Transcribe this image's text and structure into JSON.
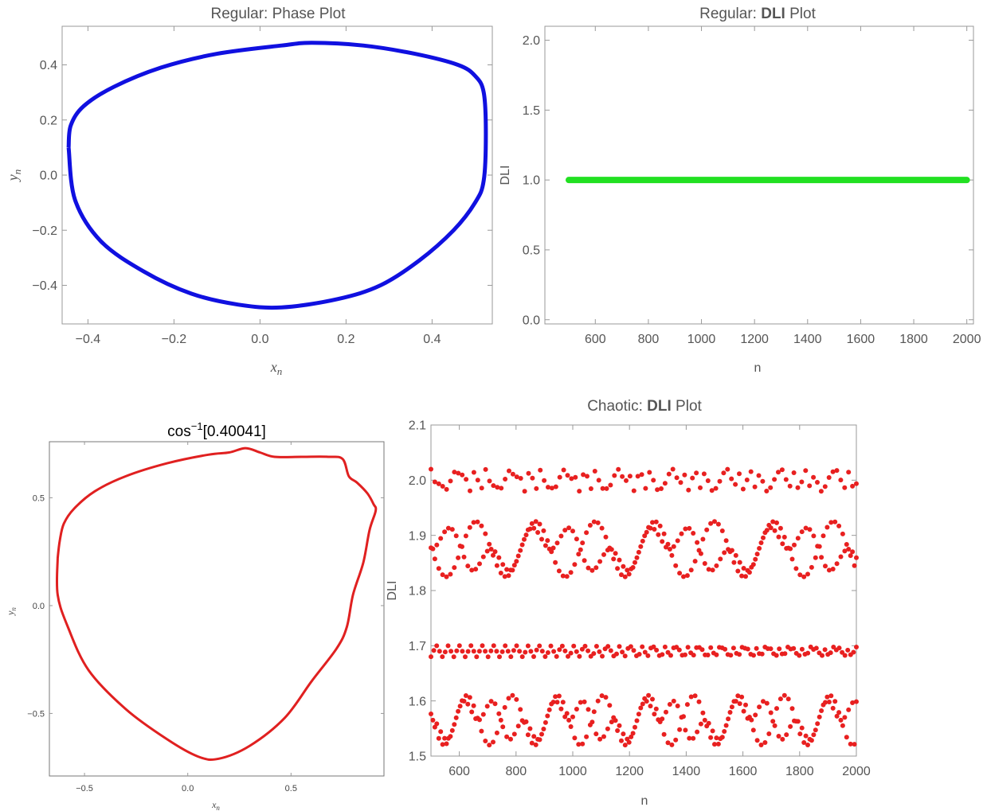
{
  "chart_data": [
    {
      "type": "scatter",
      "title": "Regular: Phase Plot",
      "xlabel": "x_n",
      "ylabel": "y_n",
      "xlim": [
        -0.46,
        0.54
      ],
      "ylim": [
        -0.54,
        0.54
      ],
      "xticks": [
        "−0.4",
        "−0.2",
        "0.0",
        "0.2",
        "0.4"
      ],
      "xtick_values": [
        -0.4,
        -0.2,
        0.0,
        0.2,
        0.4
      ],
      "yticks": [
        "−0.4",
        "−0.2",
        "0.0",
        "0.2",
        "0.4"
      ],
      "ytick_values": [
        -0.4,
        -0.2,
        0.0,
        0.2,
        0.4
      ],
      "color": "#1010e0",
      "points": [
        [
          -0.445,
          0.1
        ],
        [
          -0.44,
          0.18
        ],
        [
          -0.41,
          0.25
        ],
        [
          -0.34,
          0.32
        ],
        [
          -0.23,
          0.39
        ],
        [
          -0.1,
          0.44
        ],
        [
          0.05,
          0.47
        ],
        [
          0.12,
          0.48
        ],
        [
          0.24,
          0.47
        ],
        [
          0.36,
          0.44
        ],
        [
          0.46,
          0.4
        ],
        [
          0.5,
          0.36
        ],
        [
          0.52,
          0.3
        ],
        [
          0.525,
          0.15
        ],
        [
          0.52,
          -0.02
        ],
        [
          0.5,
          -0.1
        ],
        [
          0.45,
          -0.2
        ],
        [
          0.37,
          -0.31
        ],
        [
          0.28,
          -0.4
        ],
        [
          0.18,
          -0.45
        ],
        [
          0.05,
          -0.48
        ],
        [
          -0.05,
          -0.47
        ],
        [
          -0.16,
          -0.43
        ],
        [
          -0.27,
          -0.35
        ],
        [
          -0.37,
          -0.24
        ],
        [
          -0.43,
          -0.09
        ],
        [
          -0.445,
          0.1
        ]
      ]
    },
    {
      "type": "line",
      "title_prefix": "Regular: ",
      "title_bold": "DLI",
      "title_suffix": " Plot",
      "xlabel": "n",
      "ylabel": "DLI",
      "xlim": [
        410,
        2025
      ],
      "ylim": [
        -0.03,
        2.1
      ],
      "xticks": [
        "600",
        "800",
        "1000",
        "1200",
        "1400",
        "1600",
        "1800",
        "2000"
      ],
      "xtick_values": [
        600,
        800,
        1000,
        1200,
        1400,
        1600,
        1800,
        2000
      ],
      "yticks": [
        "0.0",
        "0.5",
        "1.0",
        "1.5",
        "2.0"
      ],
      "ytick_values": [
        0.0,
        0.5,
        1.0,
        1.5,
        2.0
      ],
      "color": "#22e022",
      "x": [
        500,
        2000
      ],
      "y": [
        1.0,
        1.0
      ]
    },
    {
      "type": "scatter",
      "title": "cos⁻¹[0.40041]",
      "title_base": "cos",
      "title_sup": "−1",
      "title_rest": "[0.40041]",
      "xlabel": "x_n",
      "ylabel": "y_n",
      "xlim": [
        -0.67,
        0.95
      ],
      "ylim": [
        -0.79,
        0.76
      ],
      "xticks": [
        "−0.5",
        "0.0",
        "0.5"
      ],
      "xtick_values": [
        -0.5,
        0.0,
        0.5
      ],
      "yticks": [
        "−0.5",
        "0.0",
        "0.5"
      ],
      "ytick_values": [
        -0.5,
        0.0,
        0.5
      ],
      "color": "#e02020",
      "points": [
        [
          -0.63,
          0.22
        ],
        [
          -0.62,
          0.3
        ],
        [
          -0.6,
          0.38
        ],
        [
          -0.55,
          0.45
        ],
        [
          -0.45,
          0.53
        ],
        [
          -0.3,
          0.6
        ],
        [
          -0.1,
          0.66
        ],
        [
          0.1,
          0.7
        ],
        [
          0.2,
          0.71
        ],
        [
          0.28,
          0.73
        ],
        [
          0.35,
          0.71
        ],
        [
          0.42,
          0.69
        ],
        [
          0.55,
          0.69
        ],
        [
          0.68,
          0.69
        ],
        [
          0.75,
          0.68
        ],
        [
          0.78,
          0.6
        ],
        [
          0.82,
          0.57
        ],
        [
          0.87,
          0.52
        ],
        [
          0.9,
          0.47
        ],
        [
          0.91,
          0.44
        ],
        [
          0.88,
          0.35
        ],
        [
          0.85,
          0.2
        ],
        [
          0.8,
          0.05
        ],
        [
          0.77,
          -0.1
        ],
        [
          0.72,
          -0.2
        ],
        [
          0.6,
          -0.35
        ],
        [
          0.47,
          -0.52
        ],
        [
          0.3,
          -0.65
        ],
        [
          0.15,
          -0.71
        ],
        [
          0.05,
          -0.7
        ],
        [
          -0.1,
          -0.62
        ],
        [
          -0.3,
          -0.48
        ],
        [
          -0.48,
          -0.3
        ],
        [
          -0.58,
          -0.1
        ],
        [
          -0.63,
          0.05
        ],
        [
          -0.63,
          0.22
        ]
      ]
    },
    {
      "type": "scatter",
      "title_prefix": "Chaotic: ",
      "title_bold": "DLI",
      "title_suffix": " Plot",
      "xlabel": "n",
      "ylabel": "DLI",
      "xlim": [
        500,
        2000
      ],
      "ylim": [
        1.5,
        2.1
      ],
      "xticks": [
        "600",
        "800",
        "1000",
        "1200",
        "1400",
        "1600",
        "1800",
        "2000"
      ],
      "xtick_values": [
        600,
        800,
        1000,
        1200,
        1400,
        1600,
        1800,
        2000
      ],
      "yticks": [
        "1.5",
        "1.6",
        "1.7",
        "1.8",
        "1.9",
        "2.0",
        "2.1"
      ],
      "ytick_values": [
        1.5,
        1.6,
        1.7,
        1.8,
        1.9,
        2.0,
        2.1
      ],
      "color": "#e82020",
      "bands": [
        {
          "center": 2.0,
          "amplitude": 0.02,
          "period": 95,
          "count": 110
        },
        {
          "center": 1.875,
          "amplitude": 0.05,
          "period": 210,
          "count": 220
        },
        {
          "center": 1.69,
          "amplitude": 0.01,
          "period": 40,
          "count": 150
        },
        {
          "center": 1.565,
          "amplitude": 0.045,
          "period": 160,
          "count": 220
        }
      ]
    }
  ]
}
